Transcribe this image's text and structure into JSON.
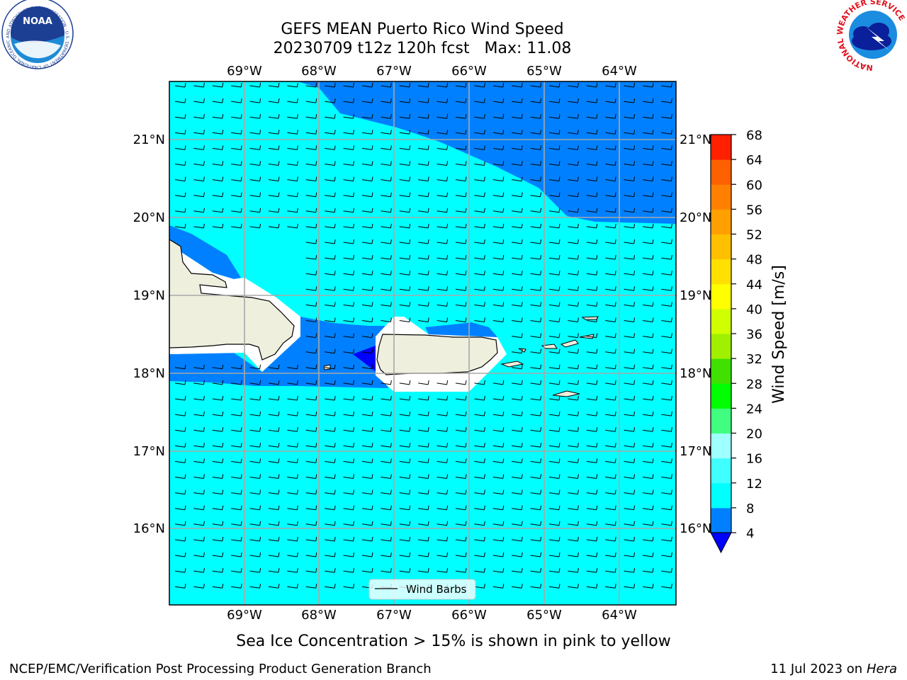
{
  "title": {
    "line1": "GEFS MEAN Puerto Rico Wind Speed",
    "line2": "20230709 t12z 120h fcst   Max: 11.08"
  },
  "map": {
    "lon_labels": [
      "69°W",
      "68°W",
      "67°W",
      "66°W",
      "65°W",
      "64°W"
    ],
    "lat_labels": [
      "21°N",
      "20°N",
      "19°N",
      "18°N",
      "17°N",
      "16°N"
    ],
    "legend_label": "Wind Barbs",
    "ocean_colors": {
      "calm": "#0080ff",
      "light": "#00ffff",
      "min": "#0000ff"
    },
    "land_color": "#efefde"
  },
  "colorbar": {
    "label": "Wind Speed [m/s]",
    "ticks": [
      "4",
      "8",
      "12",
      "16",
      "20",
      "24",
      "28",
      "32",
      "36",
      "40",
      "44",
      "48",
      "52",
      "56",
      "60",
      "64",
      "68"
    ],
    "colors": [
      "#0080ff",
      "#00ffff",
      "#40ffff",
      "#a0ffff",
      "#40ff80",
      "#00ff00",
      "#40e000",
      "#a0f000",
      "#d0ff00",
      "#ffff00",
      "#ffe000",
      "#ffc000",
      "#ffa000",
      "#ff8000",
      "#ff6000",
      "#ff2000"
    ],
    "under_color": "#0000ff"
  },
  "notes": {
    "ice": "Sea Ice Concentration > 15% is shown in pink to yellow"
  },
  "footer": {
    "left": "NCEP/EMC/Verification Post Processing Product Generation Branch",
    "right_date": "11 Jul 2023 on ",
    "right_host": "Hera"
  },
  "logos": {
    "noaa_text": "NOAA",
    "noaa_ring": "NATIONAL OCEANIC AND ATMOSPHERIC ADMINISTRATION · U.S. DEPARTMENT OF COMMERCE",
    "nws_ring": "NATIONAL WEATHER SERVICE"
  }
}
